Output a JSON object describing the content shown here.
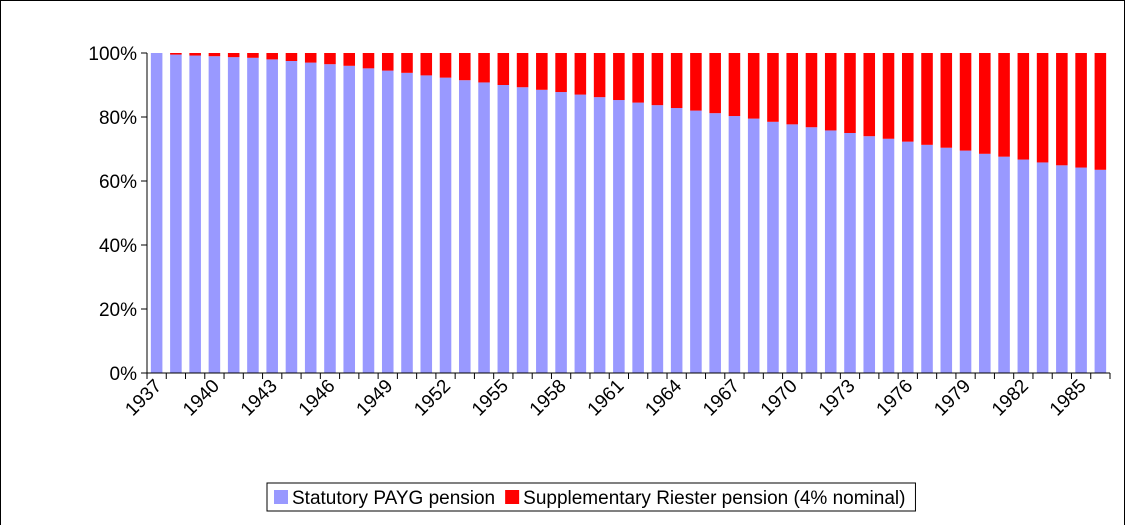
{
  "chart_data": {
    "type": "stacked_bar",
    "categories": [
      "1937",
      null,
      null,
      "1940",
      null,
      null,
      "1943",
      null,
      null,
      "1946",
      null,
      null,
      "1949",
      null,
      null,
      "1952",
      null,
      null,
      "1955",
      null,
      null,
      "1958",
      null,
      null,
      "1961",
      null,
      null,
      "1964",
      null,
      null,
      "1967",
      null,
      null,
      "1970",
      null,
      null,
      "1973",
      null,
      null,
      "1976",
      null,
      null,
      "1979",
      null,
      null,
      "1982",
      null,
      null,
      "1985",
      null
    ],
    "series": [
      {
        "name": "Statutory PAYG pension",
        "color": "#9999ff",
        "values": [
          100,
          99.5,
          99.2,
          99,
          98.7,
          98.5,
          98,
          97.5,
          97,
          96.5,
          96,
          95.2,
          94.5,
          93.8,
          93,
          92.3,
          91.5,
          90.8,
          90,
          89.3,
          88.5,
          87.8,
          87,
          86.2,
          85.3,
          84.5,
          83.7,
          82.8,
          82,
          81.2,
          80.3,
          79.5,
          78.5,
          77.7,
          76.8,
          75.8,
          75,
          74,
          73.2,
          72.3,
          71.3,
          70.4,
          69.5,
          68.5,
          67.6,
          66.7,
          65.8,
          64.9,
          64.2,
          63.5
        ]
      },
      {
        "name": "Supplementary Riester pension (4% nominal)",
        "color": "#ff0000",
        "values": [
          0,
          0.5,
          0.8,
          1,
          1.3,
          1.5,
          2,
          2.5,
          3,
          3.5,
          4,
          4.8,
          5.5,
          6.2,
          7,
          7.7,
          8.5,
          9.2,
          10,
          10.7,
          11.5,
          12.2,
          13,
          13.8,
          14.7,
          15.5,
          16.3,
          17.2,
          18,
          18.8,
          19.7,
          20.5,
          21.5,
          22.3,
          23.2,
          24.2,
          25,
          26,
          26.8,
          27.7,
          28.7,
          29.6,
          30.5,
          31.5,
          32.4,
          33.3,
          34.2,
          35.1,
          35.8,
          36.5
        ]
      }
    ],
    "ylim": [
      0,
      100
    ],
    "yticks": [
      {
        "value": 0,
        "label": "0%"
      },
      {
        "value": 20,
        "label": "20%"
      },
      {
        "value": 40,
        "label": "40%"
      },
      {
        "value": 60,
        "label": "60%"
      },
      {
        "value": 80,
        "label": "80%"
      },
      {
        "value": 100,
        "label": "100%"
      }
    ],
    "legend": "bottom"
  }
}
